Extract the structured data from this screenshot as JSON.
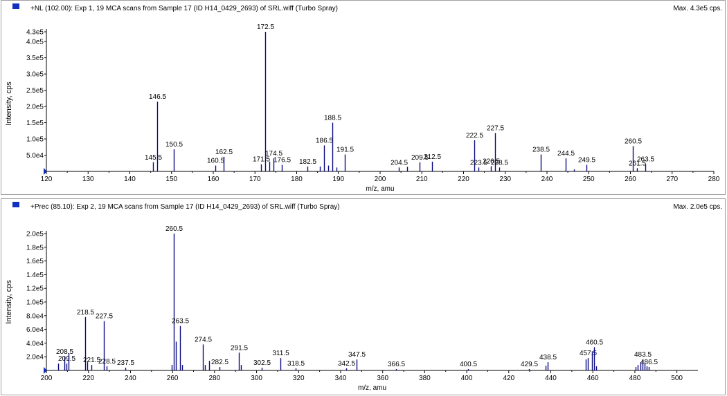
{
  "window": {
    "bg": "#ffffff",
    "border": "#a0a0a0",
    "stick_color": "#0a0a82",
    "marker_color": "#1030c0"
  },
  "chart_data": [
    {
      "type": "bar",
      "header": "+NL (102.00): Exp 1, 19 MCA scans from Sample 17 (ID H14_0429_2693) of SRL.wiff (Turbo Spray)",
      "max_text": "Max. 4.3e5 cps.",
      "xlabel": "m/z, amu",
      "ylabel": "Intensity, cps",
      "xlim": [
        120,
        280
      ],
      "ylim": [
        0,
        430000
      ],
      "xticks": [
        120,
        130,
        140,
        150,
        160,
        170,
        180,
        190,
        200,
        210,
        220,
        230,
        240,
        250,
        260,
        270,
        280
      ],
      "xtick_labels": [
        "120",
        "130",
        "140",
        "150",
        "160",
        "170",
        "180",
        "190",
        "200",
        "210",
        "220",
        "230",
        "240",
        "250",
        "260",
        "270",
        "280"
      ],
      "yticks": [
        50000,
        100000,
        150000,
        200000,
        250000,
        300000,
        350000,
        400000,
        430000
      ],
      "ytick_labels": [
        "5.0e4",
        "1.0e5",
        "1.5e5",
        "2.0e5",
        "2.5e5",
        "3.0e5",
        "3.5e5",
        "4.0e5",
        "4.3e5"
      ],
      "peaks": [
        {
          "x": 145.5,
          "y": 28000,
          "label": "145.5"
        },
        {
          "x": 146.5,
          "y": 215000,
          "label": "146.5"
        },
        {
          "x": 150.5,
          "y": 68000,
          "label": "150.5"
        },
        {
          "x": 160.5,
          "y": 18000,
          "label": "160.5"
        },
        {
          "x": 162.5,
          "y": 45000,
          "label": "162.5"
        },
        {
          "x": 171.5,
          "y": 22000,
          "label": "171.5"
        },
        {
          "x": 172.5,
          "y": 430000,
          "label": "172.5"
        },
        {
          "x": 173.5,
          "y": 30000,
          "label": ""
        },
        {
          "x": 174.5,
          "y": 40000,
          "label": "174.5"
        },
        {
          "x": 176.5,
          "y": 20000,
          "label": "176.5"
        },
        {
          "x": 182.5,
          "y": 15000,
          "label": "182.5"
        },
        {
          "x": 185.5,
          "y": 15000,
          "label": ""
        },
        {
          "x": 186.5,
          "y": 80000,
          "label": "186.5"
        },
        {
          "x": 187.5,
          "y": 18000,
          "label": ""
        },
        {
          "x": 188.5,
          "y": 150000,
          "label": "188.5"
        },
        {
          "x": 189.5,
          "y": 12000,
          "label": ""
        },
        {
          "x": 191.5,
          "y": 52000,
          "label": "191.5"
        },
        {
          "x": 204.5,
          "y": 12000,
          "label": "204.5"
        },
        {
          "x": 206.5,
          "y": 14000,
          "label": ""
        },
        {
          "x": 209.5,
          "y": 28000,
          "label": "209.5"
        },
        {
          "x": 212.5,
          "y": 30000,
          "label": "212.5"
        },
        {
          "x": 222.5,
          "y": 96000,
          "label": "222.5"
        },
        {
          "x": 223.5,
          "y": 12000,
          "label": "223.5"
        },
        {
          "x": 226.5,
          "y": 16000,
          "label": "226.5"
        },
        {
          "x": 227.5,
          "y": 118000,
          "label": "227.5"
        },
        {
          "x": 228.5,
          "y": 12000,
          "label": "228.5"
        },
        {
          "x": 238.5,
          "y": 52000,
          "label": "238.5"
        },
        {
          "x": 244.5,
          "y": 40000,
          "label": "244.5"
        },
        {
          "x": 246.5,
          "y": 6000,
          "label": ""
        },
        {
          "x": 249.5,
          "y": 20000,
          "label": "249.5"
        },
        {
          "x": 260.5,
          "y": 78000,
          "label": "260.5"
        },
        {
          "x": 261.5,
          "y": 10000,
          "label": "261.5"
        },
        {
          "x": 263.5,
          "y": 22000,
          "label": "263.5"
        }
      ]
    },
    {
      "type": "bar",
      "header": "+Prec (85.10): Exp 2, 19 MCA scans from Sample 17 (ID H14_0429_2693) of SRL.wiff (Turbo Spray)",
      "max_text": "Max. 2.0e5 cps.",
      "xlabel": "m/z, amu",
      "ylabel": "Intensity, cps",
      "xlim": [
        200,
        510
      ],
      "ylim": [
        0,
        200000
      ],
      "xticks": [
        200,
        220,
        240,
        260,
        280,
        300,
        320,
        340,
        360,
        380,
        400,
        420,
        440,
        460,
        480,
        500
      ],
      "xtick_labels": [
        "200",
        "220",
        "240",
        "260",
        "280",
        "300",
        "320",
        "340",
        "360",
        "380",
        "400",
        "420",
        "440",
        "460",
        "480",
        "500"
      ],
      "yticks": [
        20000,
        40000,
        60000,
        80000,
        100000,
        120000,
        140000,
        160000,
        180000,
        200000
      ],
      "ytick_labels": [
        "2.0e4",
        "4.0e4",
        "6.0e4",
        "8.0e4",
        "1.0e5",
        "1.2e5",
        "1.4e5",
        "1.6e5",
        "1.8e5",
        "2.0e5"
      ],
      "peaks": [
        {
          "x": 205.5,
          "y": 10000,
          "label": ""
        },
        {
          "x": 208.5,
          "y": 20000,
          "label": "208.5"
        },
        {
          "x": 209.5,
          "y": 10000,
          "label": "209.5"
        },
        {
          "x": 210.5,
          "y": 25000,
          "label": ""
        },
        {
          "x": 218.5,
          "y": 78000,
          "label": "218.5"
        },
        {
          "x": 219.5,
          "y": 12000,
          "label": ""
        },
        {
          "x": 221.5,
          "y": 8000,
          "label": "221.5"
        },
        {
          "x": 227.5,
          "y": 72000,
          "label": "227.5"
        },
        {
          "x": 228.5,
          "y": 6000,
          "label": "228.5"
        },
        {
          "x": 237.5,
          "y": 4000,
          "label": "237.5"
        },
        {
          "x": 259.5,
          "y": 8000,
          "label": ""
        },
        {
          "x": 260.5,
          "y": 200000,
          "label": "260.5"
        },
        {
          "x": 261.5,
          "y": 42000,
          "label": ""
        },
        {
          "x": 263.5,
          "y": 65000,
          "label": "263.5"
        },
        {
          "x": 264.5,
          "y": 8000,
          "label": ""
        },
        {
          "x": 274.5,
          "y": 38000,
          "label": "274.5"
        },
        {
          "x": 275.5,
          "y": 8000,
          "label": ""
        },
        {
          "x": 277.5,
          "y": 14000,
          "label": ""
        },
        {
          "x": 282.5,
          "y": 5000,
          "label": "282.5"
        },
        {
          "x": 291.5,
          "y": 26000,
          "label": "291.5"
        },
        {
          "x": 292.5,
          "y": 8000,
          "label": ""
        },
        {
          "x": 302.5,
          "y": 4000,
          "label": "302.5"
        },
        {
          "x": 311.5,
          "y": 18000,
          "label": "311.5"
        },
        {
          "x": 318.5,
          "y": 3000,
          "label": "318.5"
        },
        {
          "x": 342.5,
          "y": 3000,
          "label": "342.5"
        },
        {
          "x": 347.5,
          "y": 16000,
          "label": "347.5"
        },
        {
          "x": 366.5,
          "y": 2000,
          "label": "366.5"
        },
        {
          "x": 400.5,
          "y": 2000,
          "label": "400.5"
        },
        {
          "x": 429.5,
          "y": 2000,
          "label": "429.5"
        },
        {
          "x": 437.5,
          "y": 7000,
          "label": ""
        },
        {
          "x": 438.5,
          "y": 12000,
          "label": "438.5"
        },
        {
          "x": 456.5,
          "y": 16000,
          "label": ""
        },
        {
          "x": 457.5,
          "y": 18000,
          "label": "457.5"
        },
        {
          "x": 459.5,
          "y": 28000,
          "label": ""
        },
        {
          "x": 460.5,
          "y": 34000,
          "label": "460.5"
        },
        {
          "x": 461.5,
          "y": 6000,
          "label": ""
        },
        {
          "x": 480.5,
          "y": 5000,
          "label": ""
        },
        {
          "x": 481.5,
          "y": 8000,
          "label": ""
        },
        {
          "x": 482.5,
          "y": 12000,
          "label": ""
        },
        {
          "x": 483.5,
          "y": 16000,
          "label": "483.5"
        },
        {
          "x": 484.5,
          "y": 10000,
          "label": ""
        },
        {
          "x": 485.5,
          "y": 6000,
          "label": ""
        },
        {
          "x": 486.5,
          "y": 5000,
          "label": "486.5"
        }
      ]
    }
  ]
}
